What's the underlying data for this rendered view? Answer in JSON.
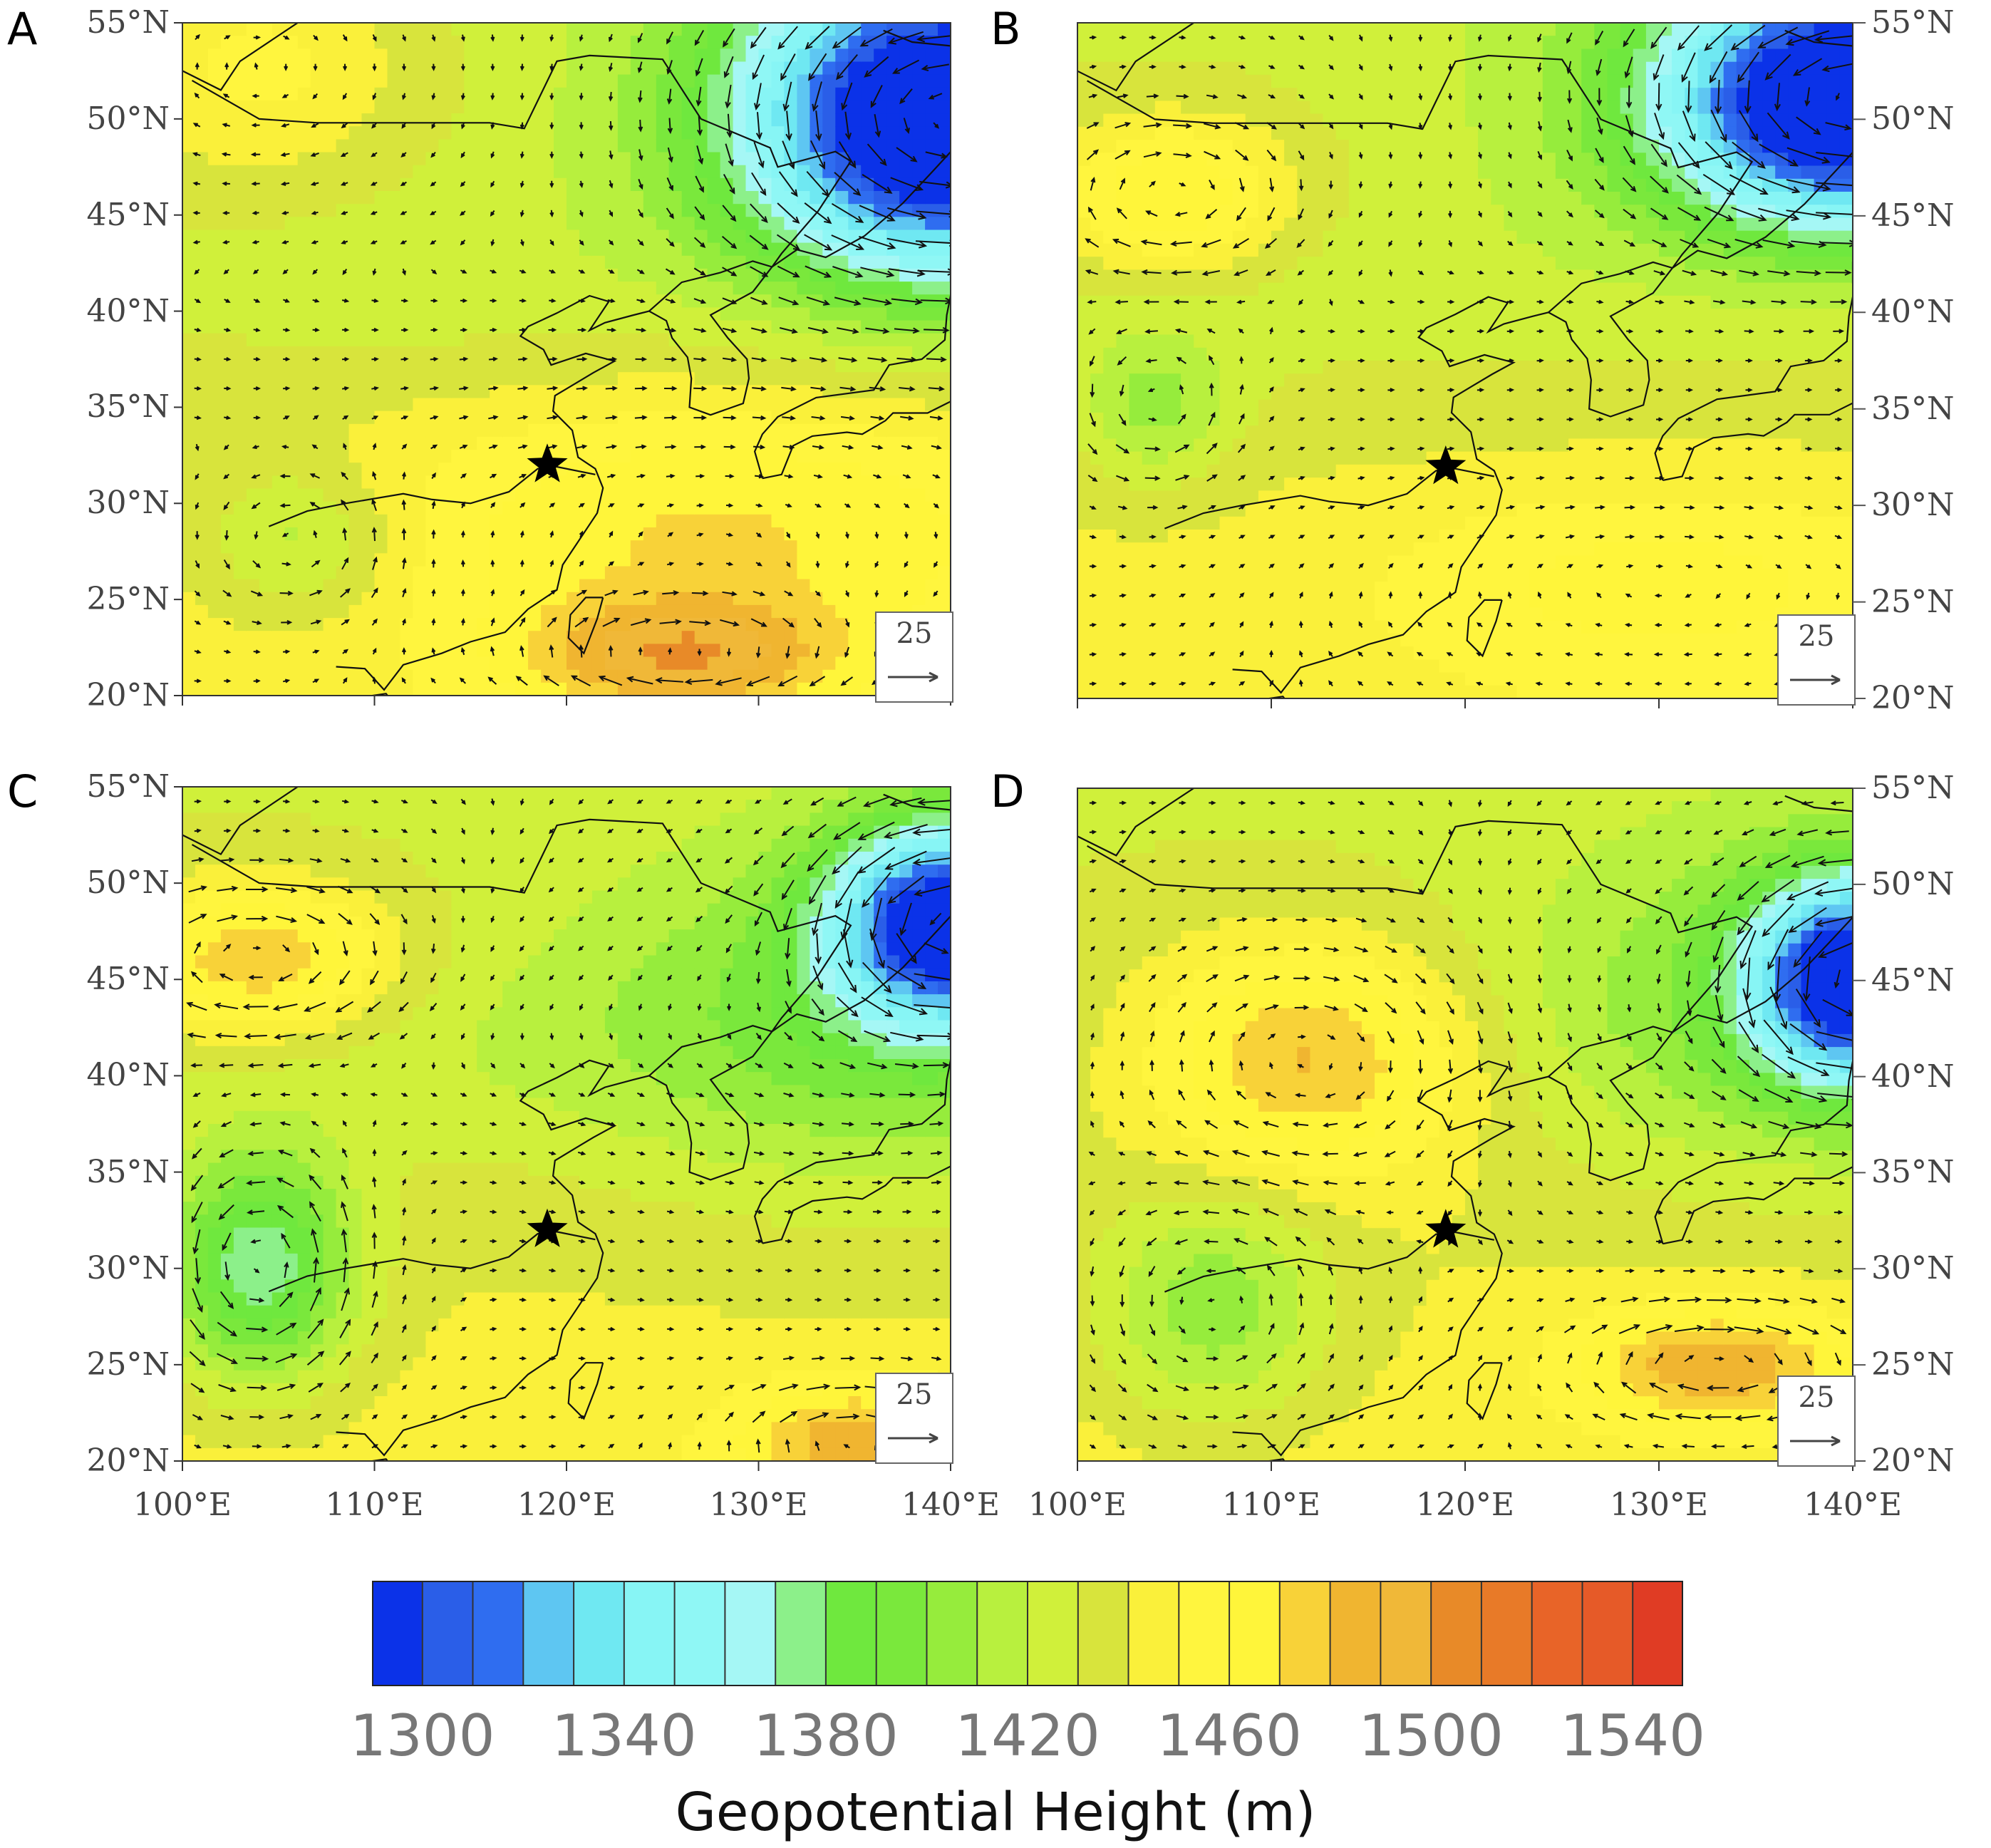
{
  "figure": {
    "colorbar": {
      "title": "Geopotential Height (m)",
      "colors": [
        "#0b32e8",
        "#2a5ee8",
        "#2f6df0",
        "#5ec6f2",
        "#6fe8f2",
        "#87f5f5",
        "#8ff7f5",
        "#a5f7f5",
        "#8cf08a",
        "#6fe83e",
        "#7ae83c",
        "#96ec3c",
        "#b8f03e",
        "#d0f03a",
        "#d8e43c",
        "#faf03a",
        "#fff53e",
        "#fff53a",
        "#f8d238",
        "#f0b530",
        "#f0b838",
        "#e88a28",
        "#e87a28",
        "#e86428",
        "#e65a28",
        "#e03c24"
      ],
      "labels": [
        "1300",
        "1340",
        "1380",
        "1420",
        "1460",
        "1500",
        "1540"
      ],
      "range_min": 1300,
      "range_max": 1560
    },
    "lat_labels": [
      "55°N",
      "50°N",
      "45°N",
      "40°N",
      "35°N",
      "30°N",
      "25°N",
      "20°N"
    ],
    "lon_labels": [
      "100°E",
      "110°E",
      "120°E",
      "130°E",
      "140°E"
    ],
    "extent": {
      "lon_min": 100,
      "lon_max": 140,
      "lat_min": 20,
      "lat_max": 55
    },
    "reference_vector": "25",
    "star_location": {
      "lon": 119,
      "lat": 32
    },
    "panels": [
      {
        "id": "A",
        "trough": {
          "lon": 140,
          "lat": 50
        },
        "lows": [
          {
            "lon": 140,
            "lat": 50,
            "value": 1310,
            "rx": 10,
            "ry": 8
          },
          {
            "lon": 106,
            "lat": 28,
            "value": 1420,
            "rx": 5,
            "ry": 4
          }
        ],
        "highs": [
          {
            "lon": 128,
            "lat": 29,
            "value": 1478,
            "rx": 18,
            "ry": 7
          },
          {
            "lon": 104,
            "lat": 53,
            "value": 1472,
            "rx": 8,
            "ry": 6
          },
          {
            "lon": 126,
            "lat": 22,
            "value": 1495,
            "rx": 8,
            "ry": 3
          }
        ]
      },
      {
        "id": "B",
        "trough": {
          "lon": 140,
          "lat": 51
        },
        "lows": [
          {
            "lon": 140,
            "lat": 51,
            "value": 1305,
            "rx": 9,
            "ry": 6
          },
          {
            "lon": 104,
            "lat": 35,
            "value": 1420,
            "rx": 4,
            "ry": 4
          }
        ],
        "highs": [
          {
            "lon": 105,
            "lat": 46,
            "value": 1490,
            "rx": 6,
            "ry": 4
          },
          {
            "lon": 130,
            "lat": 26,
            "value": 1470,
            "rx": 14,
            "ry": 5
          }
        ]
      },
      {
        "id": "C",
        "trough": {
          "lon": 137,
          "lat": 43
        },
        "lows": [
          {
            "lon": 140,
            "lat": 48,
            "value": 1312,
            "rx": 6,
            "ry": 5
          },
          {
            "lon": 104,
            "lat": 30,
            "value": 1380,
            "rx": 5,
            "ry": 6
          }
        ],
        "highs": [
          {
            "lon": 104,
            "lat": 46,
            "value": 1498,
            "rx": 7,
            "ry": 4
          },
          {
            "lon": 135,
            "lat": 21,
            "value": 1490,
            "rx": 6,
            "ry": 3
          }
        ]
      },
      {
        "id": "D",
        "trough": {
          "lon": 140,
          "lat": 44
        },
        "lows": [
          {
            "lon": 140,
            "lat": 45,
            "value": 1315,
            "rx": 5,
            "ry": 5
          },
          {
            "lon": 107,
            "lat": 28,
            "value": 1410,
            "rx": 6,
            "ry": 6
          }
        ],
        "highs": [
          {
            "lon": 112,
            "lat": 41,
            "value": 1505,
            "rx": 9,
            "ry": 6
          },
          {
            "lon": 133,
            "lat": 25,
            "value": 1495,
            "rx": 7,
            "ry": 3
          }
        ]
      }
    ]
  }
}
